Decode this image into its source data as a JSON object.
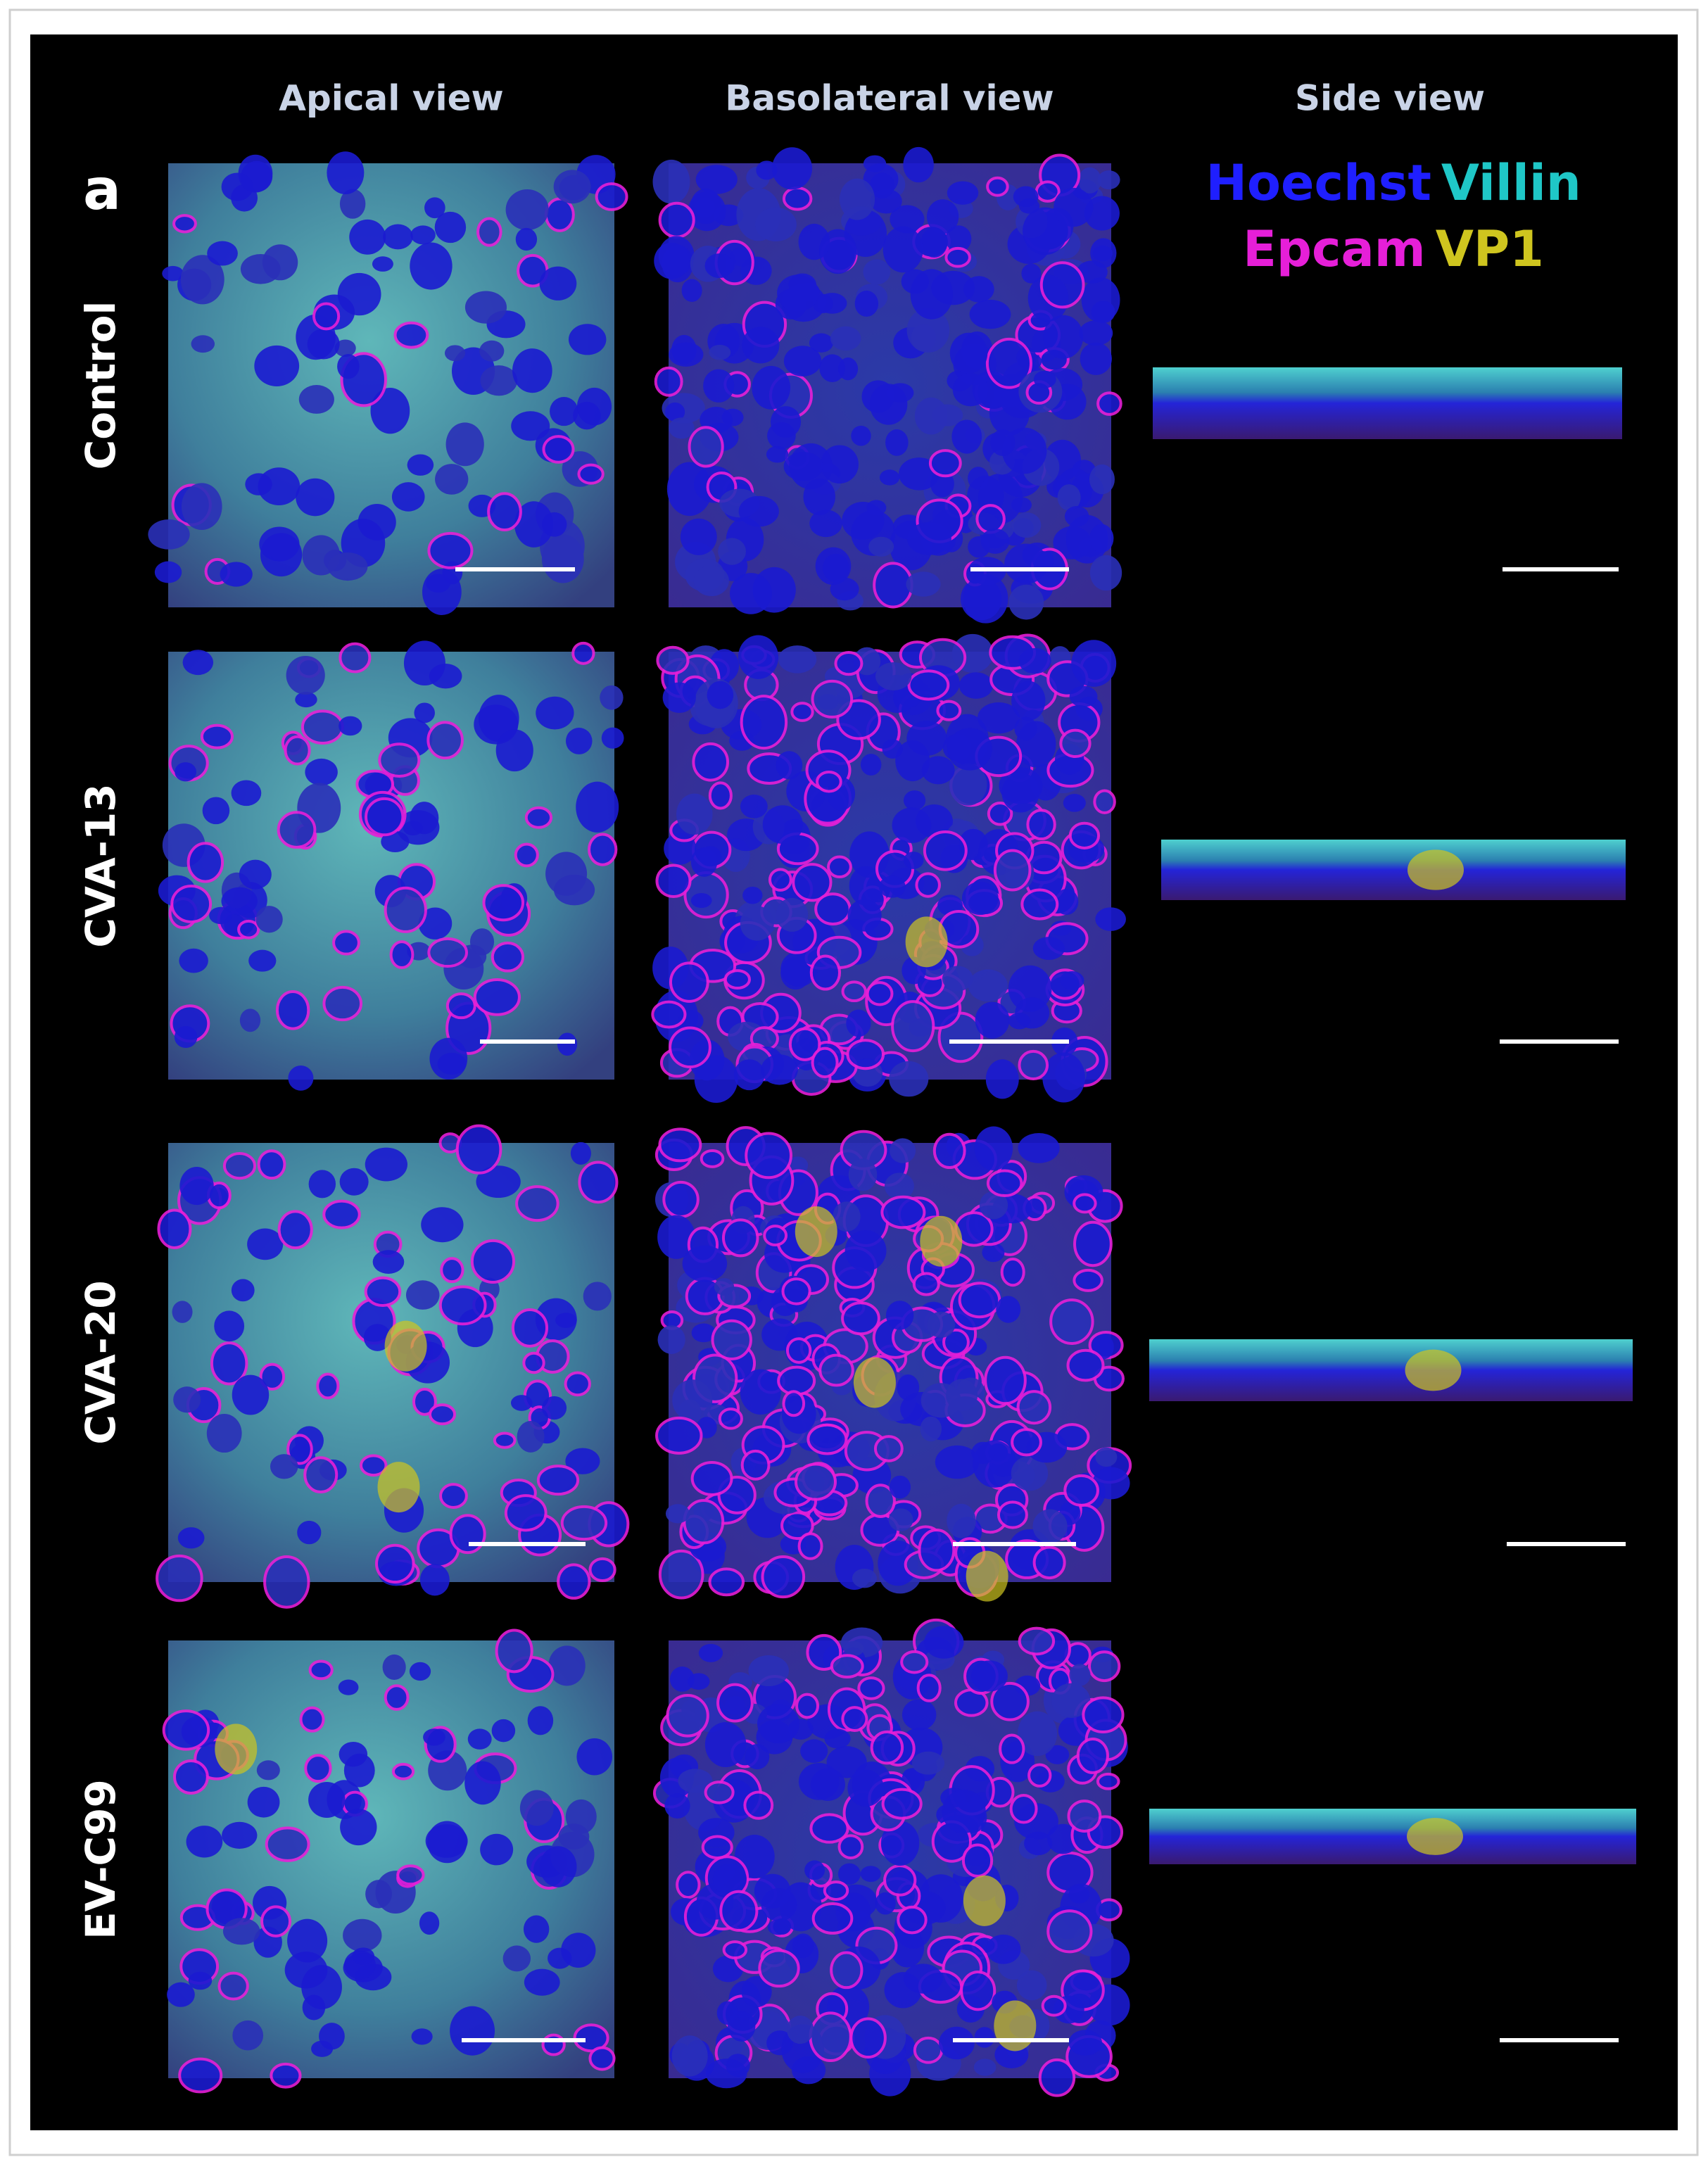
{
  "panel_label": "a",
  "column_headers": [
    "Apical view",
    "Basolateral view",
    "Side view"
  ],
  "row_labels": [
    "Control",
    "CVA-13",
    "CVA-20",
    "EV-C99"
  ],
  "legend": [
    {
      "text": "Hoechst",
      "color": "#1f1fff"
    },
    {
      "text": "Villin",
      "color": "#1fc7c7"
    },
    {
      "text": "Epcam",
      "color": "#e61fd8"
    },
    {
      "text": "VP1",
      "color": "#cfc51f"
    }
  ]
}
